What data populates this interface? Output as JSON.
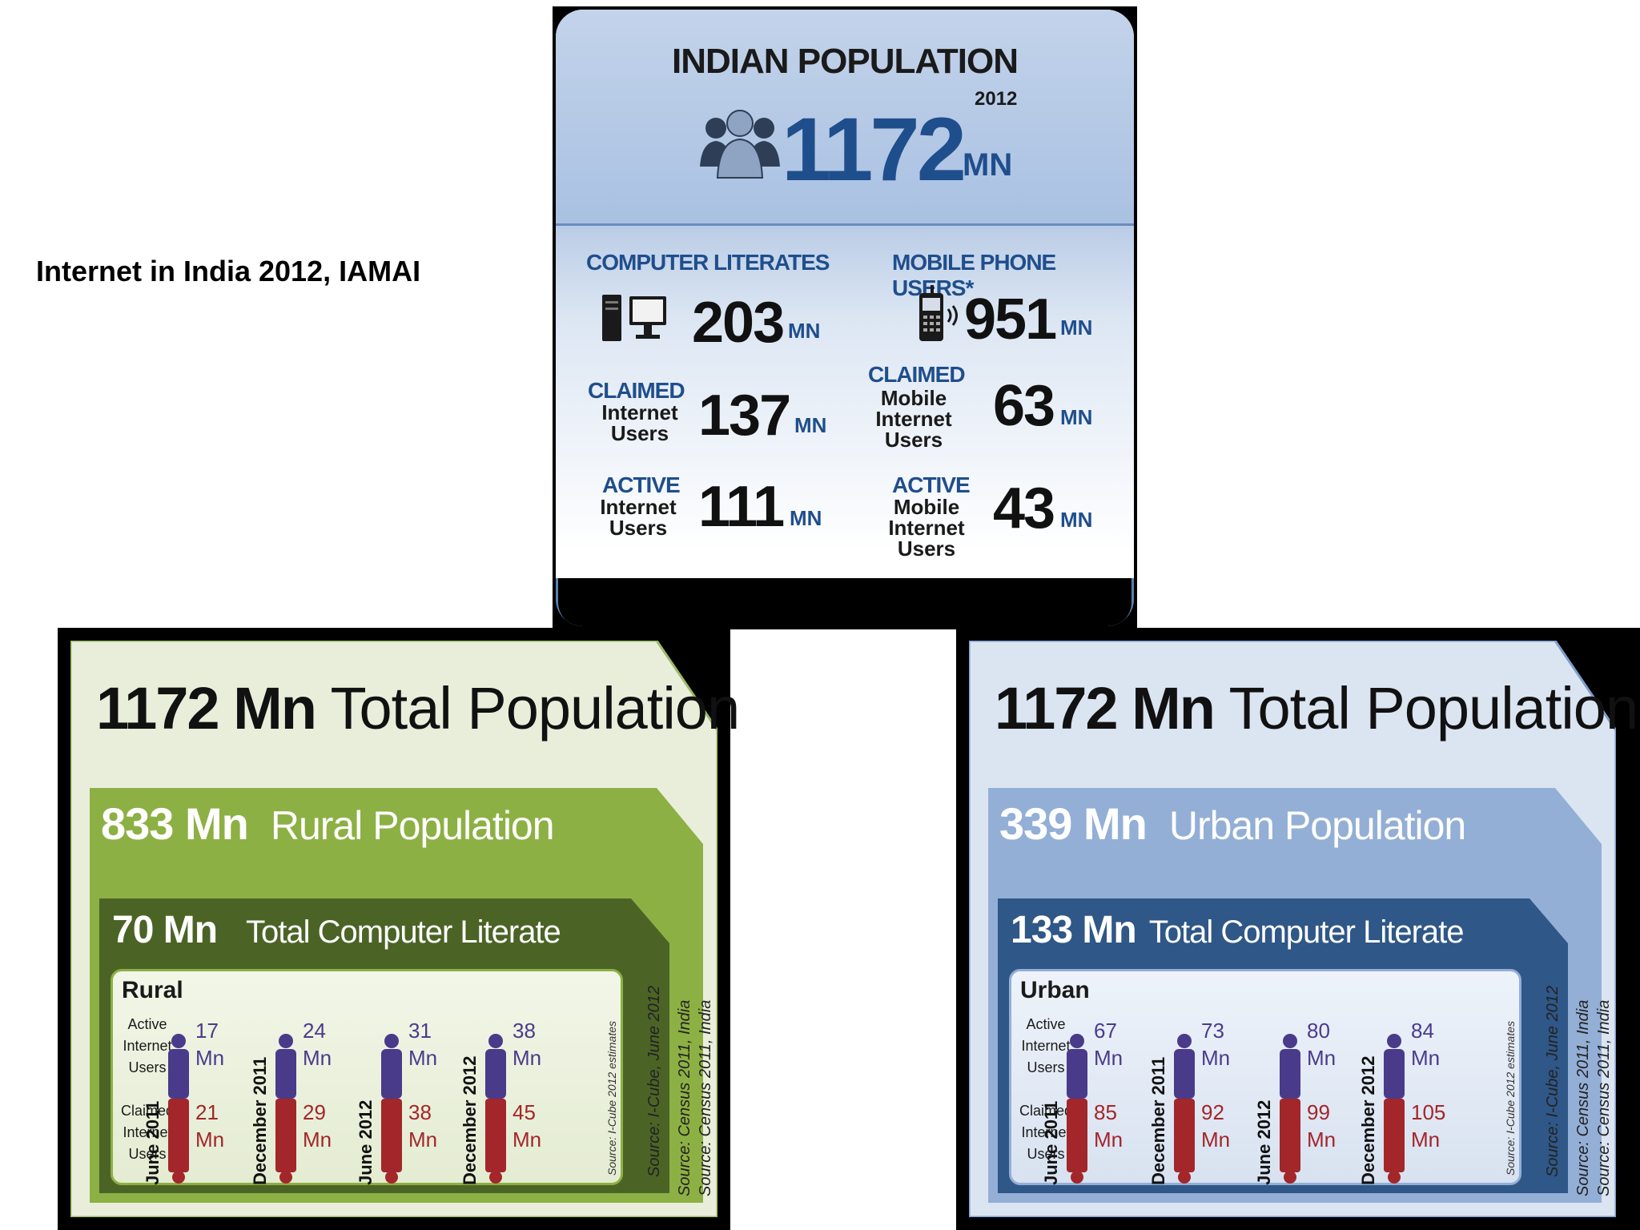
{
  "caption": "Internet in India 2012, IAMAI",
  "top": {
    "title": "INDIAN POPULATION",
    "year": "2012",
    "population": "1172",
    "population_unit": "MN",
    "unit": "MN",
    "computer_literates": {
      "label": "COMPUTER LITERATES",
      "value": "203"
    },
    "mobile_phone_users": {
      "label": "MOBILE PHONE USERS*",
      "value": "951"
    },
    "claimed_internet": {
      "label_top": "CLAIMED",
      "label_l1": "Internet",
      "label_l2": "Users",
      "value": "137"
    },
    "claimed_mobile_internet": {
      "label_top": "CLAIMED",
      "label_l1": "Mobile",
      "label_l2": "Internet",
      "label_l3": "Users",
      "value": "63"
    },
    "active_internet": {
      "label_top": "ACTIVE",
      "label_l1": "Internet",
      "label_l2": "Users",
      "value": "111"
    },
    "active_mobile_internet": {
      "label_top": "ACTIVE",
      "label_l1": "Mobile",
      "label_l2": "Internet",
      "label_l3": "Users",
      "value": "43"
    }
  },
  "common": {
    "total_value": "1172 Mn",
    "total_label": "Total Population",
    "computer_literate_label": "Total Computer Literate",
    "active_l1": "Active",
    "active_l2": "Internet",
    "active_l3": "Users",
    "claimed_l1": "Claimed",
    "claimed_l2": "Internet",
    "claimed_l3": "Users",
    "mn": "Mn",
    "periods": [
      "June 2011",
      "December 2011",
      "June 2012",
      "December 2012"
    ],
    "source_estimates": "Source: I-Cube 2012 estimates",
    "source_icube": "Source: I-Cube, June  2012",
    "source_census": "Source: Census 2011, India"
  },
  "rural": {
    "population_value": "833 Mn",
    "population_label": "Rural Population",
    "literate_value": "70 Mn",
    "segment": "Rural",
    "active": [
      "17",
      "24",
      "31",
      "38"
    ],
    "claimed": [
      "21",
      "29",
      "38",
      "45"
    ],
    "colors": {
      "outer": "#e6ecd7",
      "mid": "#8fb345",
      "inner": "#4a6325"
    }
  },
  "urban": {
    "population_value": "339 Mn",
    "population_label": "Urban Population",
    "literate_value": "133 Mn",
    "segment": "Urban",
    "active": [
      "67",
      "73",
      "80",
      "84"
    ],
    "claimed": [
      "85",
      "92",
      "99",
      "105"
    ],
    "colors": {
      "outer": "#dae3f0",
      "mid": "#92add5",
      "inner": "#2f5787"
    }
  }
}
